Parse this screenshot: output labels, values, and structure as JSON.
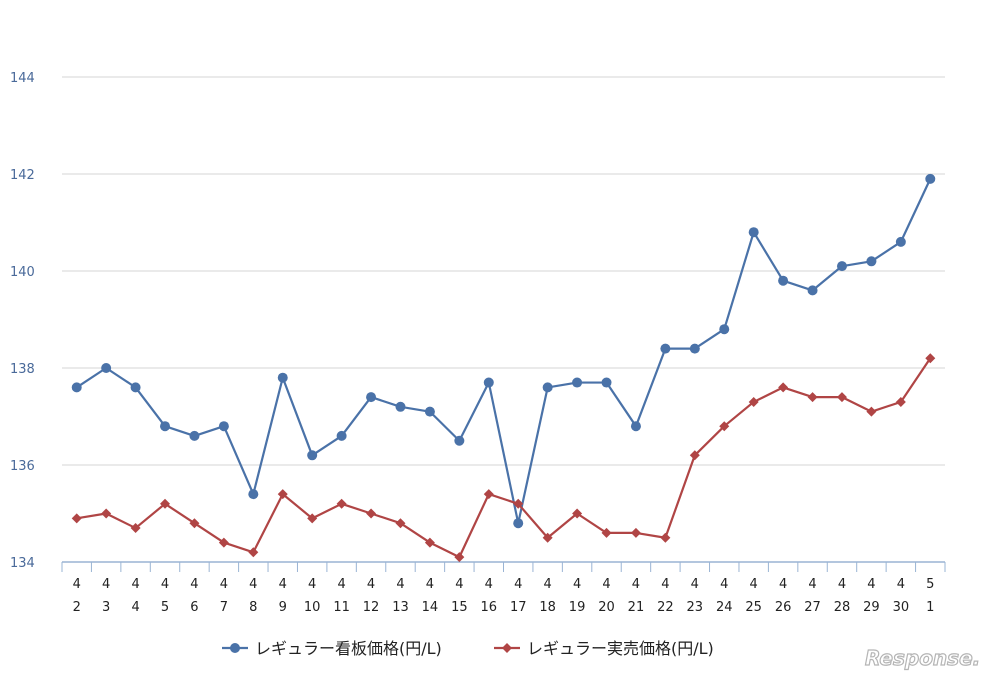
{
  "chart_data": {
    "type": "line",
    "x_month_labels": [
      "4",
      "4",
      "4",
      "4",
      "4",
      "4",
      "4",
      "4",
      "4",
      "4",
      "4",
      "4",
      "4",
      "4",
      "4",
      "4",
      "4",
      "4",
      "4",
      "4",
      "4",
      "4",
      "4",
      "4",
      "4",
      "4",
      "4",
      "4",
      "4",
      "5"
    ],
    "x_day_labels": [
      "2",
      "3",
      "4",
      "5",
      "6",
      "7",
      "8",
      "9",
      "10",
      "11",
      "12",
      "13",
      "14",
      "15",
      "16",
      "17",
      "18",
      "19",
      "20",
      "21",
      "22",
      "23",
      "24",
      "25",
      "26",
      "27",
      "28",
      "29",
      "30",
      "1"
    ],
    "ylim": [
      134,
      144
    ],
    "yticks": [
      "134",
      "136",
      "138",
      "140",
      "142",
      "144"
    ],
    "grid": true,
    "legend_position": "bottom",
    "series": [
      {
        "name": "レギュラー看板価格(円/L)",
        "color": "#4a72a8",
        "marker": "circle",
        "values": [
          137.6,
          138.0,
          137.6,
          136.8,
          136.6,
          136.8,
          135.4,
          137.8,
          136.2,
          136.6,
          137.4,
          137.2,
          137.1,
          136.5,
          137.7,
          134.8,
          137.6,
          137.7,
          137.7,
          136.8,
          138.4,
          138.4,
          138.8,
          140.8,
          139.8,
          139.6,
          140.1,
          140.2,
          140.6,
          141.9
        ]
      },
      {
        "name": "レギュラー実売価格(円/L)",
        "color": "#b04545",
        "marker": "diamond",
        "values": [
          134.9,
          135.0,
          134.7,
          135.2,
          134.8,
          134.4,
          134.2,
          135.4,
          134.9,
          135.2,
          135.0,
          134.8,
          134.4,
          134.1,
          135.4,
          135.2,
          134.5,
          135.0,
          134.6,
          134.6,
          134.5,
          136.2,
          136.8,
          137.3,
          137.6,
          137.4,
          137.4,
          137.1,
          137.3,
          138.2
        ]
      }
    ]
  },
  "watermark": "Response."
}
